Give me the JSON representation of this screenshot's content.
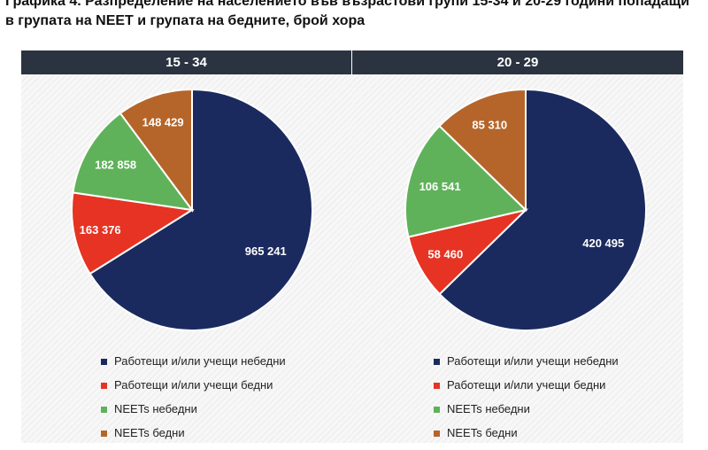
{
  "title_line1": "Графика 4. Разпределение на населението във възрастови групи 15-34 и 20-29 години попадащи",
  "title_line2": "в групата на NEET и групата на бедните, брой хора",
  "colors": {
    "working_not_poor": "#1b2a5e",
    "working_poor": "#e63323",
    "neet_not_poor": "#5fb25a",
    "neet_poor": "#b5652a"
  },
  "chart_data": [
    {
      "type": "pie",
      "title": "15 - 34",
      "categories": [
        "Работещи и/или учещи небедни",
        "Работещи и/или учещи бедни",
        "NEETs небедни",
        "NEETs бедни"
      ],
      "values": [
        965241,
        163376,
        182858,
        148429
      ],
      "labels": [
        "965 241",
        "163 376",
        "182 858",
        "148 429"
      ],
      "start_angle": 0,
      "direction": "clockwise"
    },
    {
      "type": "pie",
      "title": "20 - 29",
      "categories": [
        "Работещи и/или учещи небедни",
        "Работещи и/или учещи бедни",
        "NEETs небедни",
        "NEETs бедни"
      ],
      "values": [
        420495,
        58460,
        106541,
        85310
      ],
      "labels": [
        "420 495",
        "58 460",
        "106 541",
        "85 310"
      ],
      "start_angle": 0,
      "direction": "clockwise"
    }
  ]
}
